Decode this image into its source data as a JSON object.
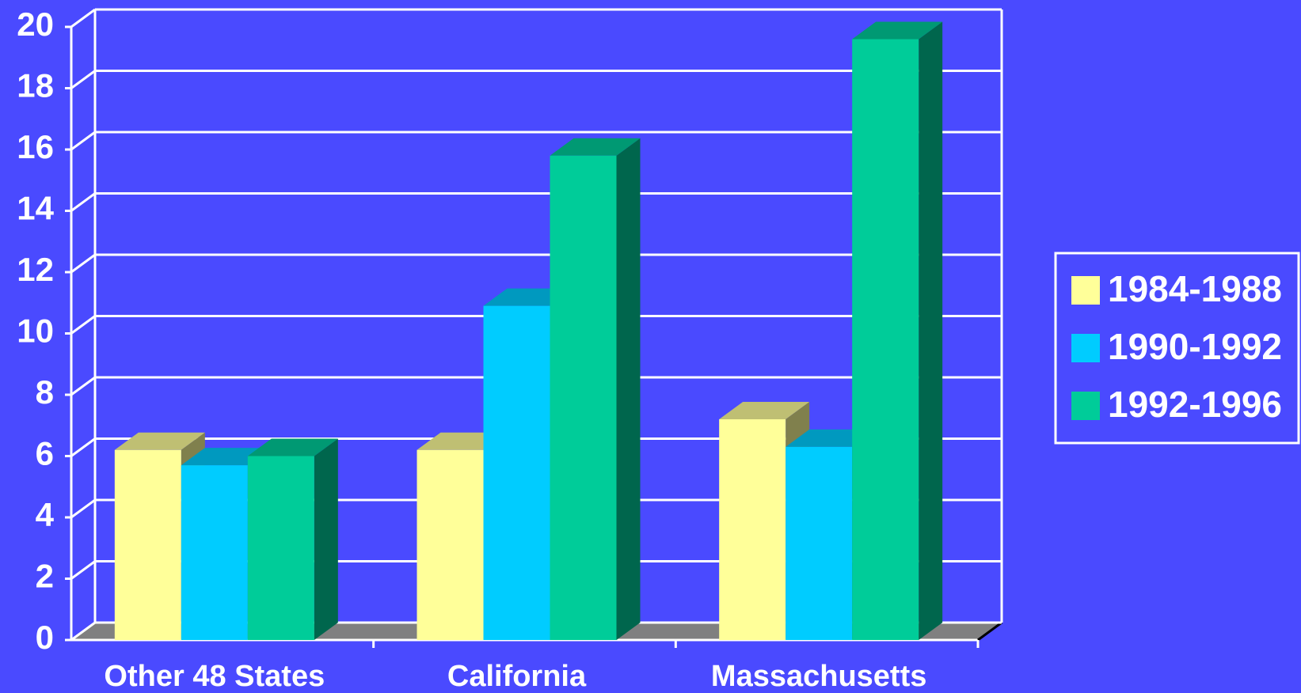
{
  "chart_data": {
    "type": "bar3d",
    "categories": [
      "Other 48 States",
      "California",
      "Massachusetts"
    ],
    "series": [
      {
        "name": "1984-1988",
        "color": "#ffff99",
        "values": [
          6.2,
          6.2,
          7.2
        ]
      },
      {
        "name": "1990-1992",
        "color": "#00ccff",
        "values": [
          5.7,
          10.9,
          6.3
        ]
      },
      {
        "name": "1992-1996",
        "color": "#00cc99",
        "values": [
          6.0,
          15.8,
          19.6
        ]
      }
    ],
    "ylim": [
      0,
      20
    ],
    "yticks": [
      0,
      2,
      4,
      6,
      8,
      10,
      12,
      14,
      16,
      18,
      20
    ],
    "grid": true,
    "legend": "right"
  }
}
